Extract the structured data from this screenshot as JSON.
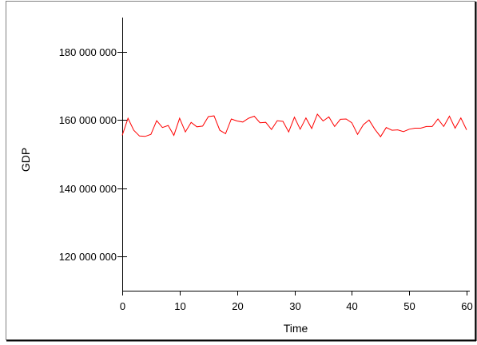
{
  "chart_data": {
    "type": "line",
    "xlabel": "Time",
    "ylabel": "GDP",
    "xlim": [
      0,
      60
    ],
    "ylim": [
      110000000,
      190000000
    ],
    "x_ticks": [
      0,
      10,
      20,
      30,
      40,
      50,
      60
    ],
    "x_tick_labels": [
      "0",
      "10",
      "20",
      "30",
      "40",
      "50",
      "60"
    ],
    "y_ticks": [
      120000000,
      140000000,
      160000000,
      180000000
    ],
    "y_tick_labels": [
      "120 000 000",
      "140 000 000",
      "160 000 000",
      "180 000 000"
    ],
    "grid": false,
    "legend": "none",
    "series": [
      {
        "color": "#ff0000",
        "x": [
          0,
          1,
          2,
          3,
          4,
          5,
          6,
          7,
          8,
          9,
          10,
          11,
          12,
          13,
          14,
          15,
          16,
          17,
          18,
          19,
          20,
          21,
          22,
          23,
          24,
          25,
          26,
          27,
          28,
          29,
          30,
          31,
          32,
          33,
          34,
          35,
          36,
          37,
          38,
          39,
          40,
          41,
          42,
          43,
          44,
          45,
          46,
          47,
          48,
          49,
          50,
          51,
          52,
          53,
          54,
          55,
          56,
          57,
          58,
          59,
          60
        ],
        "values": [
          155500000,
          160500000,
          157000000,
          155300000,
          155200000,
          155800000,
          159800000,
          157800000,
          158400000,
          155500000,
          160500000,
          156500000,
          159300000,
          158000000,
          158200000,
          161000000,
          161200000,
          157000000,
          156000000,
          160300000,
          159700000,
          159400000,
          160500000,
          161100000,
          159200000,
          159300000,
          157200000,
          159800000,
          159600000,
          156500000,
          160800000,
          157300000,
          160600000,
          157500000,
          161700000,
          159700000,
          160900000,
          158100000,
          160200000,
          160300000,
          159200000,
          155800000,
          158600000,
          160000000,
          157300000,
          155100000,
          157800000,
          157000000,
          157100000,
          156600000,
          157300000,
          157600000,
          157600000,
          158100000,
          158100000,
          160300000,
          158100000,
          161100000,
          157600000,
          160600000,
          157100000
        ]
      }
    ]
  },
  "colors": {
    "series_line": "#ff0000",
    "axis": "#000000",
    "background": "#ffffff",
    "frame": "#000000",
    "frame_shadow": "#808080"
  }
}
